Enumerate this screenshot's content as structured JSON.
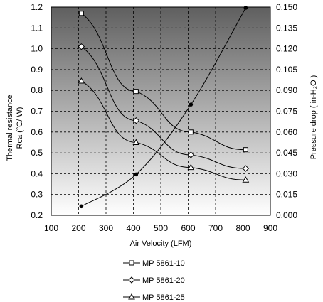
{
  "chart_data": {
    "type": "line",
    "title": "",
    "xlabel": "Air Velocity (LFM)",
    "ylabel_lines": [
      "Thermal resistance",
      "Rca (°C/ W)"
    ],
    "y2label": "Pressure drop  ( in-H₂O )",
    "xlim": [
      100,
      900
    ],
    "ylim": [
      0.2,
      1.2
    ],
    "y2lim": [
      0,
      0.15
    ],
    "grid": true,
    "x_ticks": [
      "100",
      "200",
      "300",
      "400",
      "500",
      "600",
      "700",
      "800",
      "900"
    ],
    "y_ticks": [
      "0.2",
      "0.3",
      "0.4",
      "0.5",
      "0.6",
      "0.7",
      "0.8",
      "0.9",
      "1.0",
      "1.1",
      "1.2"
    ],
    "y2_ticks": [
      "0.000",
      "0.015",
      "0.030",
      "0.045",
      "0.060",
      "0.075",
      "0.090",
      "0.105",
      "0.120",
      "0.135",
      "0.150"
    ],
    "series": [
      {
        "name": "MP 5861-10",
        "axis": "left",
        "marker": "square",
        "x": [
          210,
          410,
          610,
          810
        ],
        "y": [
          1.17,
          0.795,
          0.6,
          0.515
        ]
      },
      {
        "name": "MP 5861-20",
        "axis": "left",
        "marker": "diamond",
        "x": [
          210,
          410,
          610,
          810
        ],
        "y": [
          1.01,
          0.655,
          0.49,
          0.425
        ]
      },
      {
        "name": "MP 5861-25",
        "axis": "left",
        "marker": "triangle",
        "x": [
          210,
          410,
          610,
          810
        ],
        "y": [
          0.845,
          0.55,
          0.43,
          0.37
        ]
      },
      {
        "name": "",
        "axis": "right",
        "marker": "dot",
        "x": [
          210,
          410,
          610,
          810
        ],
        "y": [
          0.0065,
          0.0295,
          0.0798,
          0.1495
        ]
      }
    ],
    "legend": {
      "position": "bottom",
      "entries": [
        "MP 5861-10",
        "MP 5861-20",
        "MP 5861-25"
      ]
    }
  }
}
